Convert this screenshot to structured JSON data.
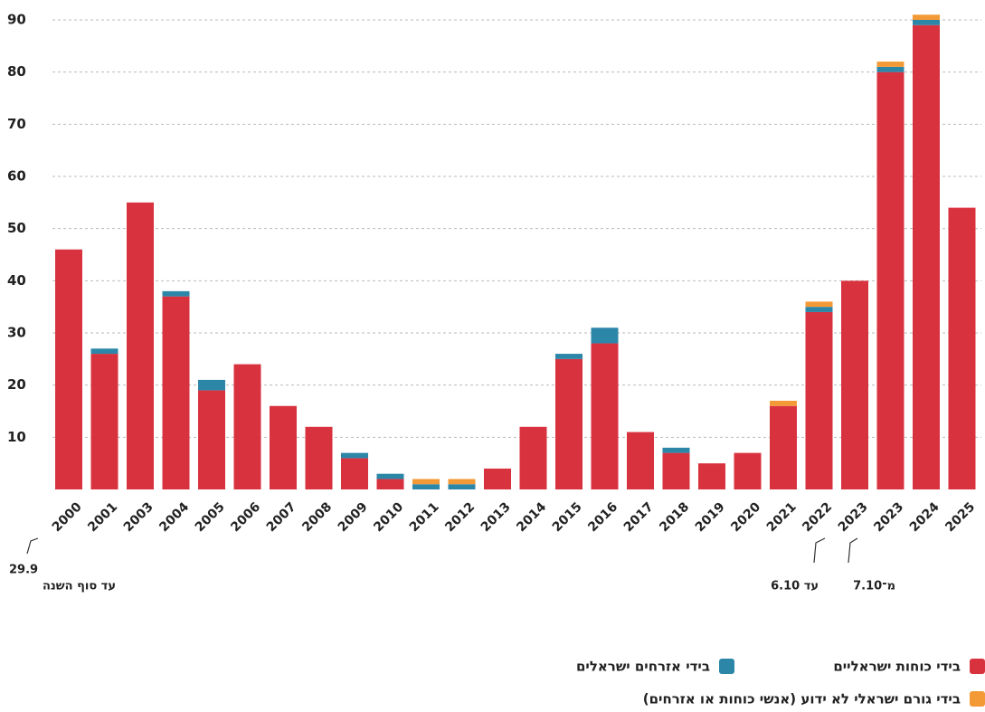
{
  "chart_data": {
    "type": "stacked_bar",
    "categories": [
      "2000",
      "2001",
      "2003",
      "2004",
      "2005",
      "2006",
      "2007",
      "2008",
      "2009",
      "2010",
      "2011",
      "2012",
      "2013",
      "2014",
      "2015",
      "2016",
      "2017",
      "2018",
      "2019",
      "2020",
      "2021",
      "2022",
      "2023",
      "2023",
      "2024",
      "2025"
    ],
    "series": [
      {
        "name": "בידי כוחות ישראליים",
        "color": "#d9323f",
        "values": [
          46,
          26,
          55,
          37,
          19,
          24,
          16,
          12,
          6,
          2,
          0,
          0,
          4,
          12,
          25,
          28,
          11,
          7,
          5,
          7,
          16,
          34,
          40,
          80,
          89,
          54
        ]
      },
      {
        "name": "בידי אזרחים ישראלים",
        "color": "#2b86a8",
        "values": [
          0,
          1,
          0,
          1,
          2,
          0,
          0,
          0,
          1,
          1,
          1,
          1,
          0,
          0,
          1,
          3,
          0,
          1,
          0,
          0,
          0,
          1,
          0,
          1,
          1,
          0
        ]
      },
      {
        "name": "בידי גורם ישראלי לא ידוע (אנשי כוחות או אזרחים)",
        "color": "#f39a36",
        "values": [
          0,
          0,
          0,
          0,
          0,
          0,
          0,
          0,
          0,
          0,
          1,
          1,
          0,
          0,
          0,
          0,
          0,
          0,
          0,
          0,
          1,
          1,
          0,
          1,
          1,
          0
        ]
      }
    ],
    "ylim": [
      0,
      90
    ],
    "yticks": [
      10,
      20,
      30,
      40,
      50,
      60,
      70,
      80,
      90
    ],
    "grid": true,
    "annotations": [
      "29.9",
      "עד סוף השנה",
      "עד 6.10",
      "מ־7.10"
    ]
  }
}
